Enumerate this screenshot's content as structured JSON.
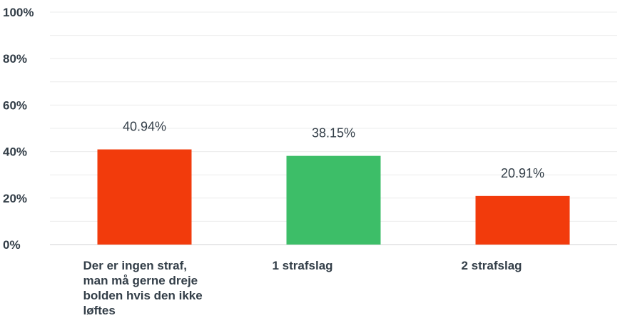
{
  "chart_data": {
    "type": "bar",
    "categories": [
      "Der er ingen straf,\nman må gerne dreje\nbolden hvis den ikke\nløftes",
      "1 strafslag",
      "2 strafslag"
    ],
    "values": [
      40.94,
      38.15,
      20.91
    ],
    "data_labels": [
      "40.94%",
      "38.15%",
      "20.91%"
    ],
    "bar_colors": [
      "#f23b0c",
      "#3dbe68",
      "#f23b0c"
    ],
    "y_ticks": [
      "0%",
      "20%",
      "40%",
      "60%",
      "80%",
      "100%"
    ],
    "y_tick_values": [
      0,
      20,
      40,
      60,
      80,
      100
    ],
    "ylim": [
      0,
      100
    ],
    "grid": true,
    "title": "",
    "xlabel": "",
    "ylabel": ""
  }
}
